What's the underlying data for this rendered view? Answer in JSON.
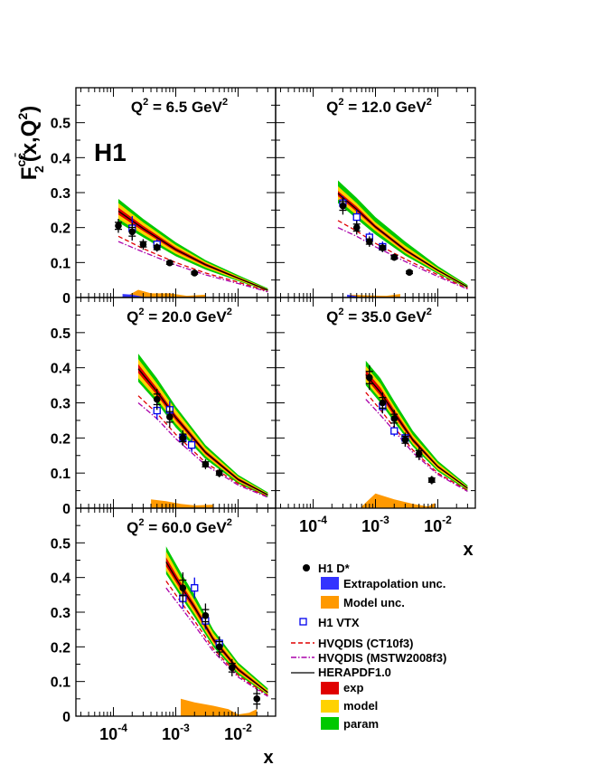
{
  "chart_data": {
    "type": "line",
    "experiment": "H1",
    "ylabel_main": "F",
    "ylabel_sup": "cc̄",
    "ylabel_sub": "2",
    "ylabel_args": "(x,Q",
    "ylabel_args_sup": "2",
    "ylabel_close": ")",
    "xlabel": "x",
    "x_scale": "log",
    "xlim": [
      2.5e-05,
      0.04
    ],
    "ylim": [
      0,
      0.6
    ],
    "y_ticks": [
      "0",
      "0.1",
      "0.2",
      "0.3",
      "0.4",
      "0.5"
    ],
    "x_tick_base": "10",
    "x_tick_exps": [
      "-4",
      "-3",
      "-2"
    ],
    "panels": [
      {
        "title_pre": "Q",
        "title_sup": "2",
        "title_mid": " = 6.5 GeV",
        "title_sup2": "2",
        "x_theory": [
          0.00012,
          0.0003,
          0.001,
          0.003,
          0.01,
          0.03
        ],
        "param_lo": [
          0.215,
          0.172,
          0.118,
          0.08,
          0.047,
          0.018
        ],
        "param_hi": [
          0.282,
          0.225,
          0.158,
          0.107,
          0.064,
          0.026
        ],
        "model_lo": [
          0.225,
          0.18,
          0.125,
          0.086,
          0.05,
          0.019
        ],
        "model_hi": [
          0.27,
          0.215,
          0.15,
          0.102,
          0.06,
          0.024
        ],
        "exp_lo": [
          0.237,
          0.19,
          0.132,
          0.09,
          0.053,
          0.02
        ],
        "exp_hi": [
          0.257,
          0.205,
          0.143,
          0.098,
          0.058,
          0.023
        ],
        "hera": [
          0.247,
          0.197,
          0.137,
          0.094,
          0.055,
          0.021
        ],
        "ct10": [
          0.175,
          0.14,
          0.1,
          0.07,
          0.044,
          0.018
        ],
        "mstw": [
          0.16,
          0.13,
          0.093,
          0.065,
          0.04,
          0.016
        ],
        "dstar_x": [
          0.00012,
          0.0002,
          0.0003,
          0.0005,
          0.0008,
          0.002
        ],
        "dstar_y": [
          0.205,
          0.188,
          0.152,
          0.143,
          0.099,
          0.07
        ],
        "dstar_err": [
          0.02,
          0.025,
          0.015,
          0.012,
          0.008,
          0.006
        ],
        "vtx_x": [
          0.0002,
          0.0005
        ],
        "vtx_y": [
          0.198,
          0.152
        ],
        "vtx_err": [
          0.035,
          0.015
        ],
        "model_x": [
          0.00018,
          0.00025,
          0.0004,
          0.0008,
          0.0015,
          0.003
        ],
        "model_unc": [
          0.008,
          0.022,
          0.012,
          0.012,
          0.005,
          0.008
        ],
        "extrap_x": [
          0.00014,
          0.0002,
          0.0003
        ],
        "extrap_unc": [
          0.01,
          0.008,
          0.002
        ]
      },
      {
        "title_pre": "Q",
        "title_sup": "2",
        "title_mid": " = 12.0 GeV",
        "title_sup2": "2",
        "x_theory": [
          0.00025,
          0.0005,
          0.001,
          0.003,
          0.01,
          0.03
        ],
        "param_lo": [
          0.27,
          0.225,
          0.18,
          0.12,
          0.068,
          0.027
        ],
        "param_hi": [
          0.335,
          0.285,
          0.23,
          0.16,
          0.09,
          0.036
        ],
        "model_lo": [
          0.28,
          0.235,
          0.19,
          0.127,
          0.072,
          0.028
        ],
        "model_hi": [
          0.318,
          0.27,
          0.215,
          0.148,
          0.084,
          0.033
        ],
        "exp_lo": [
          0.29,
          0.245,
          0.197,
          0.132,
          0.075,
          0.029
        ],
        "exp_hi": [
          0.305,
          0.26,
          0.207,
          0.14,
          0.08,
          0.032
        ],
        "hera": [
          0.298,
          0.252,
          0.202,
          0.136,
          0.078,
          0.03
        ],
        "ct10": [
          0.22,
          0.19,
          0.155,
          0.11,
          0.065,
          0.026
        ],
        "mstw": [
          0.2,
          0.175,
          0.145,
          0.103,
          0.06,
          0.024
        ],
        "dstar_x": [
          0.0003,
          0.0005,
          0.0008,
          0.0013,
          0.002,
          0.0035
        ],
        "dstar_y": [
          0.262,
          0.2,
          0.16,
          0.142,
          0.115,
          0.072
        ],
        "dstar_err": [
          0.025,
          0.02,
          0.015,
          0.012,
          0.01,
          0.007
        ],
        "vtx_x": [
          0.0003,
          0.0005,
          0.0008,
          0.0013
        ],
        "vtx_y": [
          0.27,
          0.23,
          0.172,
          0.145
        ],
        "vtx_err": [
          0.02,
          0.02,
          0.015,
          0.015
        ],
        "model_x": [
          0.0004,
          0.0008,
          0.0015,
          0.0025
        ],
        "model_unc": [
          0.008,
          0.006,
          0.005,
          0.01
        ],
        "extrap_x": [
          0.00035,
          0.0005
        ],
        "extrap_unc": [
          0.008,
          0.004
        ]
      },
      {
        "title_pre": "Q",
        "title_sup": "2",
        "title_mid": " = 20.0 GeV",
        "title_sup2": "2",
        "x_theory": [
          0.00025,
          0.0005,
          0.001,
          0.003,
          0.01,
          0.03
        ],
        "param_lo": [
          0.36,
          0.3,
          0.23,
          0.14,
          0.07,
          0.032
        ],
        "param_hi": [
          0.44,
          0.37,
          0.29,
          0.18,
          0.095,
          0.045
        ],
        "model_lo": [
          0.37,
          0.31,
          0.24,
          0.148,
          0.075,
          0.035
        ],
        "model_hi": [
          0.425,
          0.355,
          0.28,
          0.172,
          0.09,
          0.042
        ],
        "exp_lo": [
          0.385,
          0.322,
          0.25,
          0.154,
          0.078,
          0.036
        ],
        "exp_hi": [
          0.41,
          0.342,
          0.266,
          0.164,
          0.086,
          0.04
        ],
        "hera": [
          0.397,
          0.332,
          0.258,
          0.159,
          0.082,
          0.038
        ],
        "ct10": [
          0.32,
          0.27,
          0.21,
          0.13,
          0.07,
          0.033
        ],
        "mstw": [
          0.3,
          0.255,
          0.198,
          0.123,
          0.066,
          0.031
        ],
        "dstar_x": [
          0.0005,
          0.0008,
          0.0013,
          0.003,
          0.005
        ],
        "dstar_y": [
          0.31,
          0.26,
          0.2,
          0.125,
          0.1
        ],
        "dstar_err": [
          0.03,
          0.03,
          0.022,
          0.014,
          0.012
        ],
        "vtx_x": [
          0.0005,
          0.0008,
          0.0013,
          0.0018
        ],
        "vtx_y": [
          0.278,
          0.28,
          0.2,
          0.18
        ],
        "vtx_err": [
          0.025,
          0.025,
          0.02,
          0.02
        ],
        "model_x": [
          0.0004,
          0.0007,
          0.0012,
          0.002,
          0.004
        ],
        "model_unc": [
          0.025,
          0.02,
          0.012,
          0.008,
          0.01
        ],
        "extrap_x": [],
        "extrap_unc": []
      },
      {
        "title_pre": "Q",
        "title_sup": "2",
        "title_mid": " = 35.0 GeV",
        "title_sup2": "2",
        "x_theory": [
          0.0007,
          0.0012,
          0.002,
          0.004,
          0.01,
          0.03
        ],
        "param_lo": [
          0.35,
          0.3,
          0.245,
          0.175,
          0.105,
          0.05
        ],
        "param_hi": [
          0.42,
          0.37,
          0.305,
          0.22,
          0.135,
          0.065
        ],
        "model_lo": [
          0.36,
          0.31,
          0.255,
          0.182,
          0.11,
          0.053
        ],
        "model_hi": [
          0.405,
          0.355,
          0.29,
          0.208,
          0.128,
          0.061
        ],
        "exp_lo": [
          0.37,
          0.32,
          0.262,
          0.188,
          0.115,
          0.055
        ],
        "exp_hi": [
          0.393,
          0.343,
          0.28,
          0.2,
          0.122,
          0.059
        ],
        "hera": [
          0.38,
          0.33,
          0.271,
          0.194,
          0.118,
          0.057
        ],
        "ct10": [
          0.33,
          0.28,
          0.23,
          0.165,
          0.1,
          0.05
        ],
        "mstw": [
          0.31,
          0.265,
          0.22,
          0.158,
          0.096,
          0.048
        ],
        "dstar_x": [
          0.0008,
          0.0013,
          0.002,
          0.003,
          0.005,
          0.008
        ],
        "dstar_y": [
          0.372,
          0.3,
          0.255,
          0.195,
          0.155,
          0.08
        ],
        "dstar_err": [
          0.035,
          0.03,
          0.025,
          0.02,
          0.018,
          0.012
        ],
        "vtx_x": [
          0.0013,
          0.002,
          0.003
        ],
        "vtx_y": [
          0.29,
          0.22,
          0.2
        ],
        "vtx_err": [
          0.02,
          0.015,
          0.012
        ],
        "model_x": [
          0.0006,
          0.001,
          0.002,
          0.004,
          0.007,
          0.009
        ],
        "model_unc": [
          0.005,
          0.042,
          0.025,
          0.012,
          0.005,
          0.015
        ],
        "extrap_x": [],
        "extrap_unc": []
      },
      {
        "title_pre": "Q",
        "title_sup": "2",
        "title_mid": " = 60.0 GeV",
        "title_sup2": "2",
        "x_theory": [
          0.0007,
          0.0012,
          0.002,
          0.004,
          0.01,
          0.03
        ],
        "param_lo": [
          0.41,
          0.345,
          0.285,
          0.2,
          0.12,
          0.06
        ],
        "param_hi": [
          0.49,
          0.415,
          0.35,
          0.25,
          0.155,
          0.08
        ],
        "model_lo": [
          0.42,
          0.355,
          0.295,
          0.208,
          0.126,
          0.063
        ],
        "model_hi": [
          0.475,
          0.4,
          0.335,
          0.24,
          0.148,
          0.075
        ],
        "exp_lo": [
          0.432,
          0.365,
          0.305,
          0.215,
          0.13,
          0.066
        ],
        "exp_hi": [
          0.458,
          0.386,
          0.323,
          0.229,
          0.14,
          0.071
        ],
        "hera": [
          0.445,
          0.375,
          0.314,
          0.222,
          0.135,
          0.068
        ],
        "ct10": [
          0.39,
          0.33,
          0.275,
          0.195,
          0.118,
          0.06
        ],
        "mstw": [
          0.37,
          0.315,
          0.262,
          0.187,
          0.113,
          0.057
        ],
        "dstar_x": [
          0.0013,
          0.003,
          0.005,
          0.008,
          0.02
        ],
        "dstar_y": [
          0.37,
          0.29,
          0.2,
          0.14,
          0.05
        ],
        "dstar_err": [
          0.045,
          0.035,
          0.03,
          0.025,
          0.03
        ],
        "vtx_x": [
          0.0013,
          0.002,
          0.003,
          0.005
        ],
        "vtx_y": [
          0.34,
          0.37,
          0.275,
          0.21
        ],
        "vtx_err": [
          0.03,
          0.03,
          0.025,
          0.02
        ],
        "model_x": [
          0.0012,
          0.002,
          0.004,
          0.007,
          0.01,
          0.015,
          0.02
        ],
        "model_unc": [
          0.05,
          0.04,
          0.03,
          0.02,
          0.005,
          0.01,
          0.02
        ],
        "extrap_x": [],
        "extrap_unc": []
      }
    ],
    "legend": {
      "dstar": "H1 D*",
      "extrap": "Extrapolation unc.",
      "model_unc": "Model unc.",
      "vtx": "H1 VTX",
      "ct10": "HVQDIS (CT10f3)",
      "mstw": "HVQDIS (MSTW2008f3)",
      "hera": "HERAPDF1.0",
      "exp": "exp",
      "model": "model",
      "param": "param"
    },
    "colors": {
      "param": "#00c800",
      "model": "#ffd200",
      "exp": "#e00000",
      "hera": "#000000",
      "ct10": "#e00000",
      "mstw": "#aa00aa",
      "model_unc": "#ff9900",
      "extrap": "#3333ff",
      "vtx": "#0000ee",
      "dstar": "#000000"
    }
  }
}
